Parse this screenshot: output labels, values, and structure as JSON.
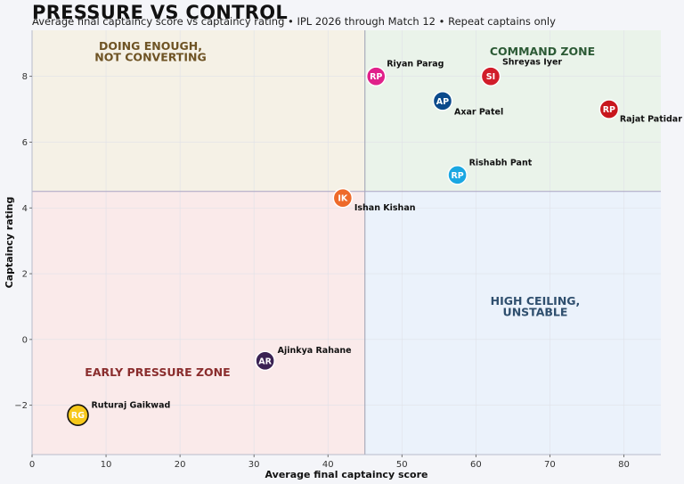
{
  "title": "PRESSURE VS CONTROL",
  "subtitle": "Average final captaincy score vs captaincy rating • IPL 2026 through Match 12 • Repeat captains only",
  "chart_data": {
    "type": "scatter",
    "xlabel": "Average final captaincy score",
    "ylabel": "Captaincy rating",
    "xlim": [
      0,
      85
    ],
    "ylim": [
      -3.5,
      9.4
    ],
    "xticks": [
      "0",
      "10",
      "20",
      "30",
      "40",
      "50",
      "60",
      "70",
      "80"
    ],
    "yticks": [
      "−2",
      "0",
      "2",
      "4",
      "6",
      "8"
    ],
    "grid": true,
    "quadrant_split": {
      "x": 45,
      "y": 4.5
    },
    "zones": [
      {
        "lines": [
          "DOING ENOUGH,",
          "NOT CONVERTING"
        ],
        "color": "#6e5324",
        "fill": "#f5f1e6"
      },
      {
        "lines": [
          "COMMAND ZONE"
        ],
        "color": "#2c5a35",
        "fill": "#eaf3ea"
      },
      {
        "lines": [
          "EARLY PRESSURE ZONE"
        ],
        "color": "#8a2d2d",
        "fill": "#faeaea"
      },
      {
        "lines": [
          "HIGH CEILING,",
          "UNSTABLE"
        ],
        "color": "#2f4f6e",
        "fill": "#ebf2fb"
      }
    ],
    "points": [
      {
        "name": "Riyan Parag",
        "initials": "RP",
        "x": 46.5,
        "y": 8.0,
        "color": "#e0218a",
        "text_color": "#ffffff"
      },
      {
        "name": "Shreyas Iyer",
        "initials": "SI",
        "x": 62.0,
        "y": 8.0,
        "color": "#d11d2a",
        "text_color": "#ffffff"
      },
      {
        "name": "Axar Patel",
        "initials": "AP",
        "x": 55.5,
        "y": 7.25,
        "color": "#0b4a8b",
        "text_color": "#ffffff"
      },
      {
        "name": "Rajat Patidar",
        "initials": "RP",
        "x": 78.0,
        "y": 7.0,
        "color": "#c8161d",
        "text_color": "#ffffff"
      },
      {
        "name": "Rishabh Pant",
        "initials": "RP",
        "x": 57.5,
        "y": 5.0,
        "color": "#1aa7e2",
        "text_color": "#ffffff"
      },
      {
        "name": "Ishan Kishan",
        "initials": "IK",
        "x": 42.0,
        "y": 4.3,
        "color": "#ee6a2a",
        "text_color": "#ffffff"
      },
      {
        "name": "Ajinkya Rahane",
        "initials": "AR",
        "x": 31.5,
        "y": -0.65,
        "color": "#3a2253",
        "text_color": "#ffffff"
      },
      {
        "name": "Ruturaj Gaikwad",
        "initials": "RG",
        "x": 6.2,
        "y": -2.3,
        "color": "#f7c81a",
        "text_color": "#111111"
      }
    ]
  }
}
